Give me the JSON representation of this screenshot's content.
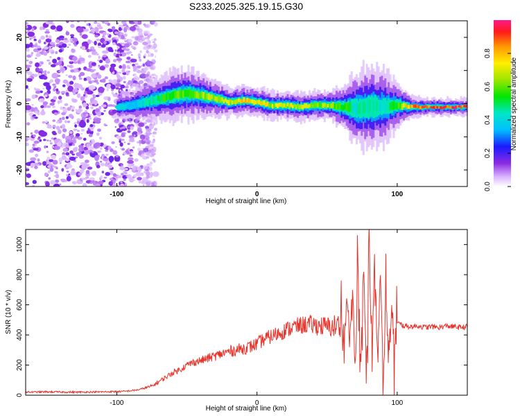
{
  "title": "S233.2025.325.19.15.G30",
  "colors": {
    "snr_line": "#e8332b",
    "axis": "#000000",
    "noise": "#8a2be2"
  },
  "colorbar": {
    "label": "Normalized spectral amplitude",
    "ticks": [
      "0.0",
      "0.2",
      "0.4",
      "0.6",
      "0.8"
    ],
    "range": [
      0,
      1
    ]
  },
  "chart_data": [
    {
      "type": "heatmap",
      "title": "",
      "xlabel": "Height of straight line (km)",
      "ylabel": "Frequency (Hz)",
      "xlim": [
        -165,
        150
      ],
      "ylim": [
        -25,
        25
      ],
      "xticks": [
        "-100",
        "0",
        "100"
      ],
      "xtick_values": [
        -100,
        0,
        100
      ],
      "yticks": [
        "-20",
        "-10",
        "0",
        "10",
        "20"
      ],
      "ytick_values": [
        -20,
        -10,
        0,
        10,
        20
      ],
      "noise_region_x": [
        -165,
        -80
      ],
      "ridge": {
        "x": [
          -100,
          -90,
          -80,
          -70,
          -60,
          -50,
          -40,
          -30,
          -20,
          -10,
          0,
          10,
          20,
          30,
          40,
          50,
          60,
          70,
          80,
          90,
          100,
          110,
          120,
          130,
          140,
          150
        ],
        "freq": [
          -1,
          -0.5,
          0.5,
          1.5,
          2.5,
          3,
          2.5,
          1.5,
          0.5,
          1,
          0.5,
          -0.5,
          -0.5,
          -1,
          -0.5,
          -0.5,
          -1,
          -1.5,
          -1,
          -1,
          -0.5,
          -1,
          -1,
          -1,
          -1,
          -1
        ],
        "amplitude": [
          0.4,
          0.35,
          0.45,
          0.55,
          0.6,
          0.6,
          0.65,
          0.7,
          0.75,
          0.8,
          0.8,
          0.7,
          0.75,
          0.7,
          0.65,
          0.7,
          0.6,
          0.45,
          0.5,
          0.45,
          0.6,
          0.9,
          0.95,
          0.95,
          0.95,
          0.95
        ],
        "width": [
          1.5,
          2,
          2.5,
          3,
          3.5,
          3.5,
          3,
          2.5,
          2,
          2,
          2,
          2,
          2,
          2,
          2,
          2,
          3,
          5,
          6,
          5,
          3,
          1.5,
          1.2,
          1.2,
          1.2,
          1.2
        ]
      }
    },
    {
      "type": "line",
      "title": "",
      "xlabel": "Height of straight line (km)",
      "ylabel": "SNR (10 * v/v)",
      "xlim": [
        -165,
        150
      ],
      "ylim": [
        0,
        1100
      ],
      "xticks": [
        "-100",
        "0",
        "100"
      ],
      "xtick_values": [
        -100,
        0,
        100
      ],
      "yticks": [
        "0",
        "200",
        "400",
        "600",
        "800",
        "1000"
      ],
      "ytick_values": [
        0,
        200,
        400,
        600,
        800,
        1000
      ],
      "series": [
        {
          "name": "SNR",
          "x": [
            -165,
            -150,
            -130,
            -110,
            -95,
            -85,
            -75,
            -70,
            -65,
            -60,
            -55,
            -50,
            -45,
            -40,
            -35,
            -30,
            -25,
            -20,
            -15,
            -10,
            -5,
            0,
            5,
            10,
            15,
            20,
            25,
            30,
            35,
            40,
            45,
            50,
            55,
            60,
            62,
            64,
            66,
            68,
            70,
            72,
            74,
            76,
            78,
            80,
            82,
            84,
            86,
            88,
            90,
            92,
            94,
            96,
            98,
            100,
            105,
            110,
            115,
            120,
            125,
            130,
            135,
            140,
            145,
            150
          ],
          "values": [
            20,
            22,
            20,
            22,
            25,
            35,
            60,
            90,
            120,
            150,
            170,
            200,
            220,
            230,
            245,
            260,
            275,
            290,
            300,
            310,
            320,
            340,
            370,
            390,
            410,
            430,
            450,
            460,
            470,
            465,
            460,
            455,
            450,
            470,
            250,
            620,
            300,
            700,
            180,
            850,
            260,
            900,
            120,
            1100,
            150,
            950,
            200,
            800,
            90,
            700,
            200,
            650,
            280,
            480,
            460,
            455,
            460,
            450,
            455,
            450,
            460,
            455,
            450,
            455
          ]
        }
      ]
    }
  ]
}
